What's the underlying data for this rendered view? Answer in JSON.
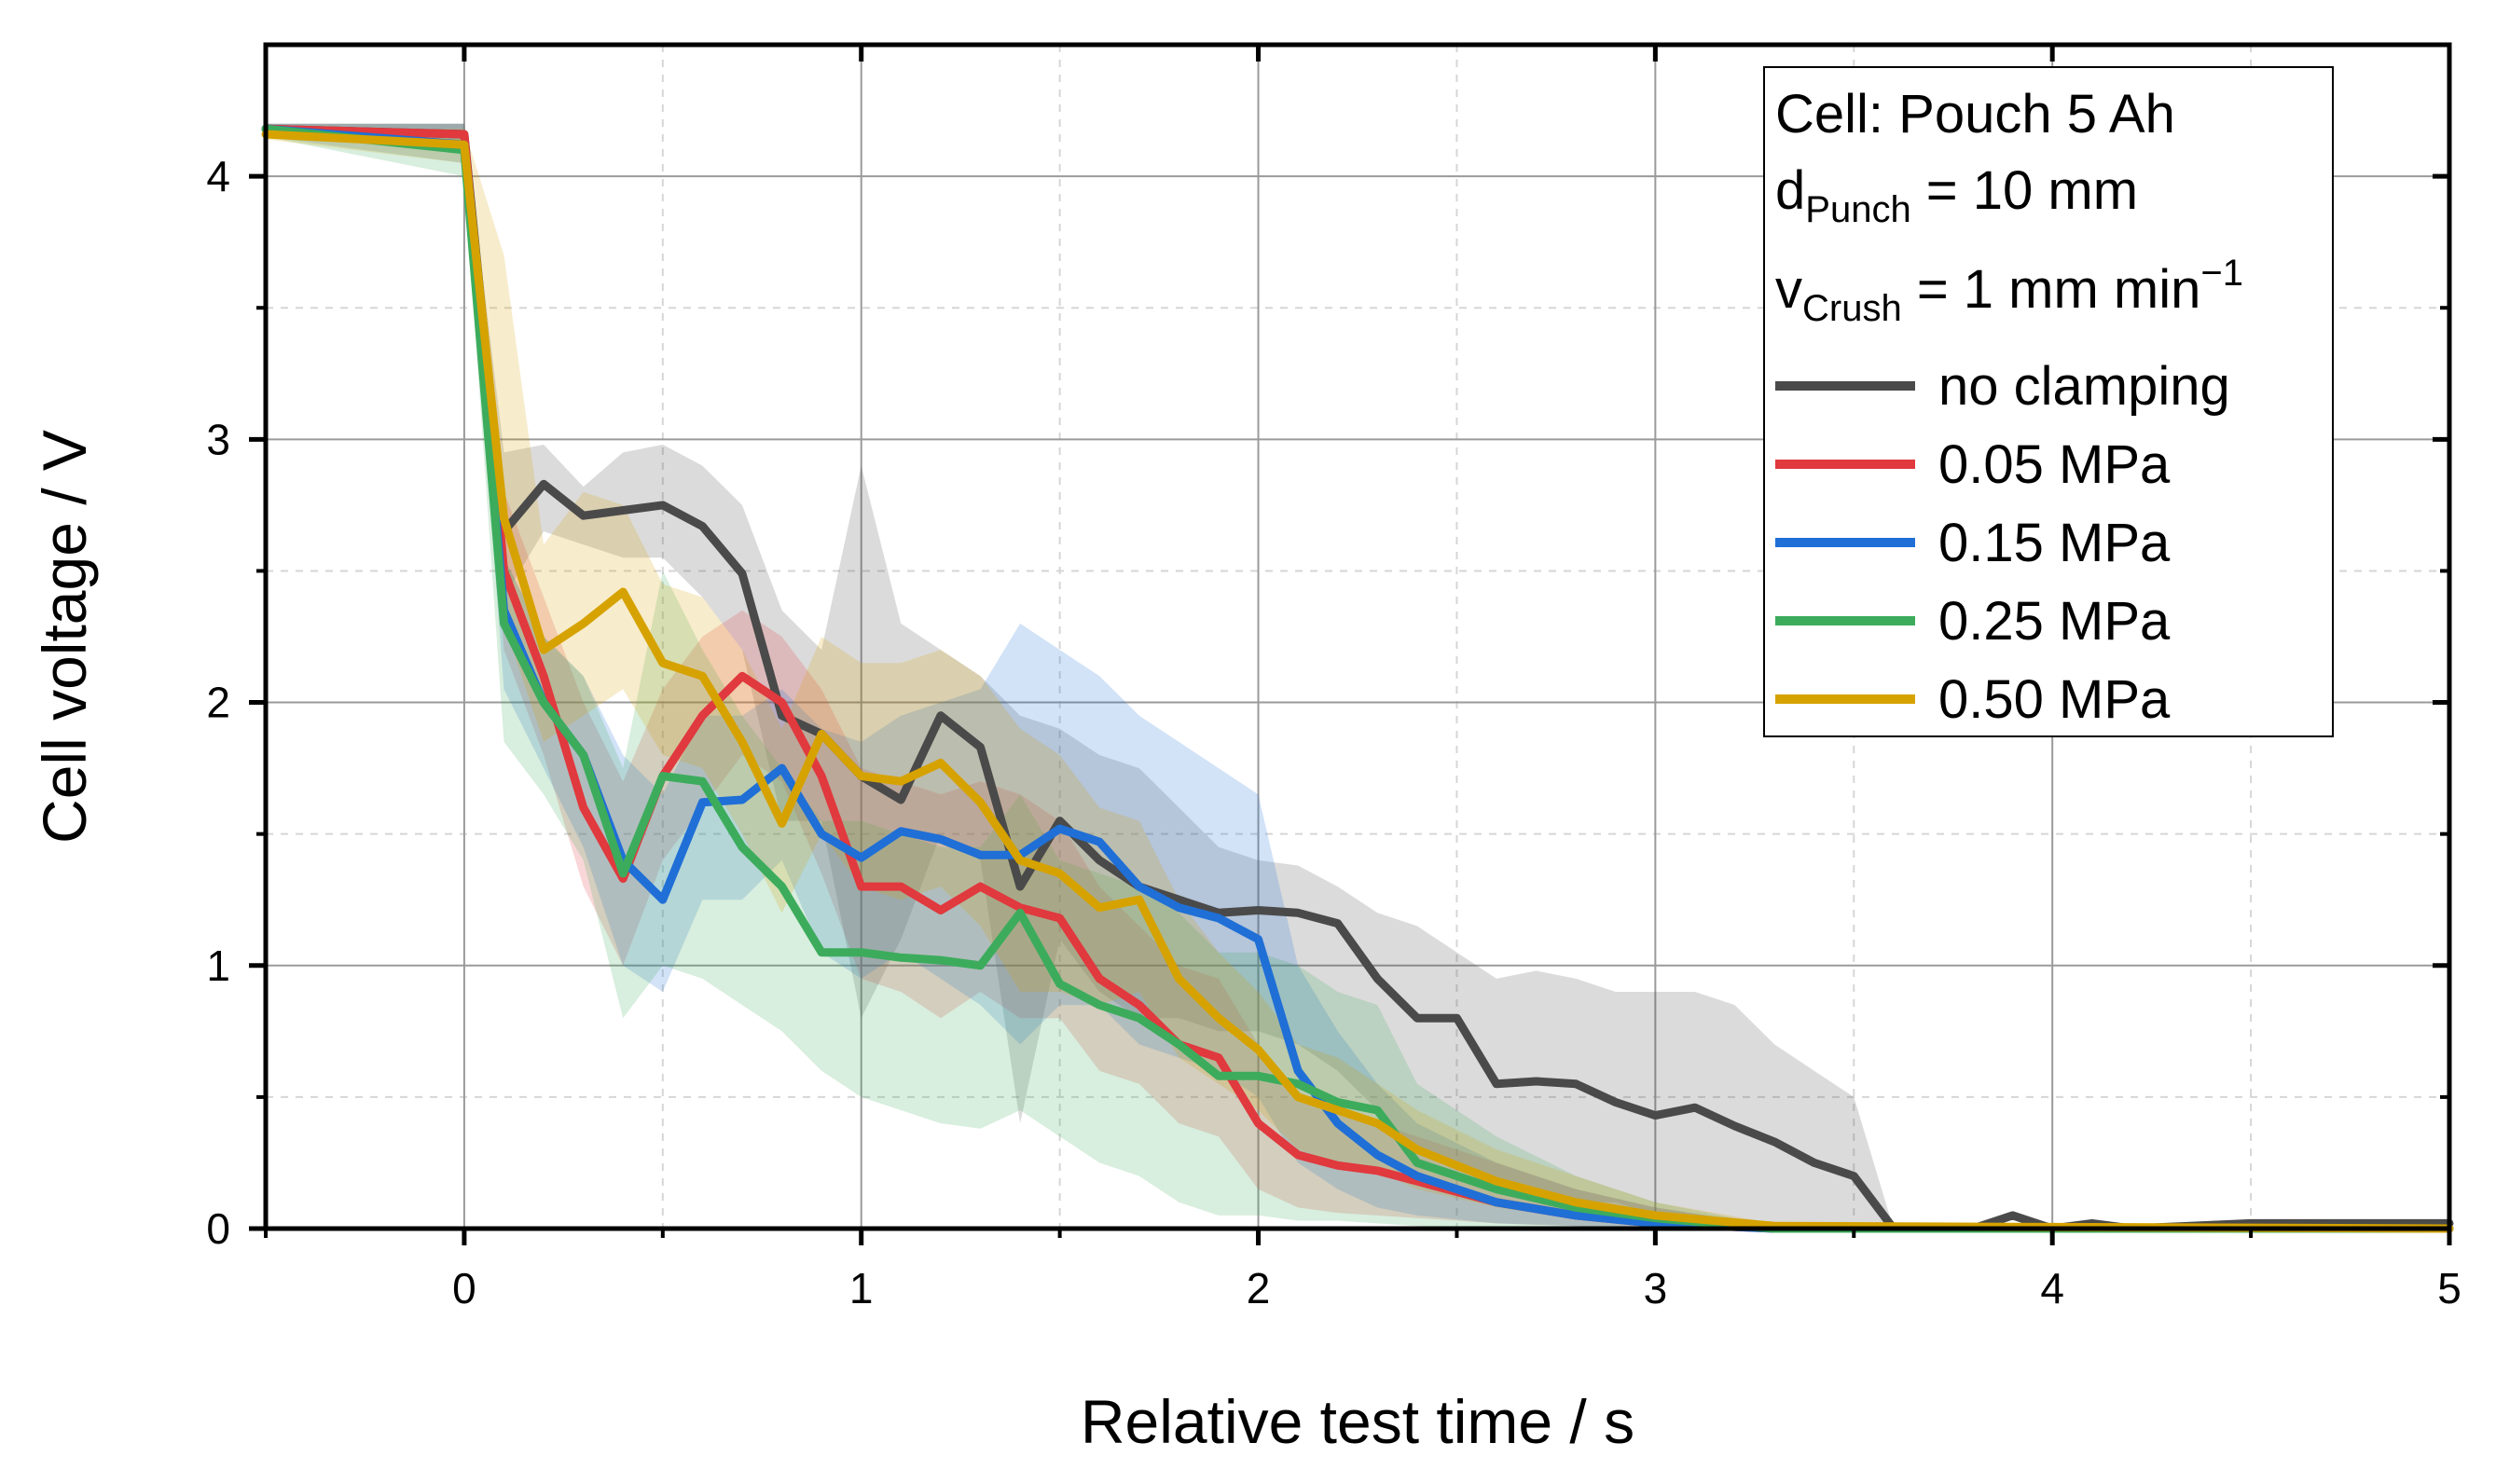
{
  "chart_data": {
    "type": "line",
    "xlabel": "Relative test time / s",
    "ylabel": "Cell voltage / V",
    "xlim": [
      -0.5,
      5
    ],
    "ylim": [
      0,
      4.5
    ],
    "xticks": [
      "0",
      "1",
      "2",
      "3",
      "4",
      "5"
    ],
    "yticks": [
      "0",
      "1",
      "2",
      "3",
      "4"
    ],
    "grid": true,
    "legend_position": "top-right",
    "annotations": {
      "cell": "Cell: Pouch 5 Ah",
      "punch_main": "d",
      "punch_sub": "Punch",
      "punch_rest": " = 10 mm",
      "crush_main": "v",
      "crush_sub": "Crush",
      "crush_rest": " = 1 mm min",
      "crush_sup": "−1"
    },
    "series": [
      {
        "name": "no clamping",
        "color": "#4a4a4a",
        "x": [
          -0.5,
          0.0,
          0.1,
          0.2,
          0.3,
          0.4,
          0.5,
          0.6,
          0.7,
          0.8,
          0.9,
          1.0,
          1.1,
          1.2,
          1.3,
          1.4,
          1.5,
          1.6,
          1.7,
          1.8,
          1.9,
          2.0,
          2.1,
          2.2,
          2.3,
          2.4,
          2.5,
          2.6,
          2.7,
          2.8,
          2.9,
          3.0,
          3.1,
          3.2,
          3.3,
          3.4,
          3.5,
          3.6,
          3.7,
          3.8,
          3.9,
          4.0,
          4.1,
          4.2,
          4.5,
          5.0
        ],
        "y": [
          4.18,
          4.16,
          2.65,
          2.83,
          2.71,
          2.73,
          2.75,
          2.67,
          2.49,
          1.95,
          1.88,
          1.72,
          1.63,
          1.95,
          1.83,
          1.3,
          1.55,
          1.4,
          1.3,
          1.25,
          1.2,
          1.21,
          1.2,
          1.16,
          0.95,
          0.8,
          0.8,
          0.55,
          0.56,
          0.55,
          0.48,
          0.43,
          0.46,
          0.39,
          0.33,
          0.25,
          0.2,
          0.0,
          0.0,
          0.0,
          0.05,
          0.0,
          0.02,
          0.0,
          0.02,
          0.02
        ],
        "band_upper": [
          4.2,
          4.2,
          2.95,
          2.98,
          2.82,
          2.95,
          2.98,
          2.9,
          2.75,
          2.35,
          2.2,
          2.9,
          2.3,
          2.2,
          2.1,
          1.95,
          1.9,
          1.8,
          1.75,
          1.6,
          1.45,
          1.4,
          1.38,
          1.3,
          1.2,
          1.15,
          1.05,
          0.95,
          0.98,
          0.95,
          0.9,
          0.9,
          0.9,
          0.85,
          0.7,
          0.6,
          0.5,
          0.0,
          0.0,
          0.0,
          0.05,
          0.0,
          0.02,
          0.0,
          0.02,
          0.02
        ],
        "band_lower": [
          4.15,
          4.1,
          2.4,
          2.65,
          2.6,
          2.55,
          2.55,
          2.4,
          2.2,
          1.55,
          1.55,
          0.8,
          1.1,
          1.5,
          1.4,
          0.4,
          1.1,
          0.9,
          0.8,
          0.8,
          0.75,
          0.75,
          0.7,
          0.6,
          0.45,
          0.3,
          0.25,
          0.15,
          0.15,
          0.1,
          0.1,
          0.05,
          0.05,
          0.02,
          0.01,
          0.01,
          0.0,
          0.0,
          0.0,
          0.0,
          0.05,
          0.0,
          0.02,
          0.0,
          0.02,
          0.02
        ]
      },
      {
        "name": "0.05 MPa",
        "color": "#e0393e",
        "x": [
          -0.5,
          0.0,
          0.1,
          0.2,
          0.3,
          0.4,
          0.5,
          0.6,
          0.7,
          0.8,
          0.9,
          1.0,
          1.1,
          1.2,
          1.3,
          1.4,
          1.5,
          1.6,
          1.7,
          1.8,
          1.9,
          2.0,
          2.1,
          2.2,
          2.3,
          2.4,
          2.6,
          2.8,
          3.0,
          3.3,
          5.0
        ],
        "y": [
          4.18,
          4.16,
          2.5,
          2.1,
          1.6,
          1.33,
          1.72,
          1.95,
          2.1,
          2.0,
          1.72,
          1.3,
          1.3,
          1.21,
          1.3,
          1.22,
          1.18,
          0.95,
          0.85,
          0.7,
          0.65,
          0.4,
          0.28,
          0.24,
          0.22,
          0.18,
          0.1,
          0.05,
          0.02,
          0.0,
          0.0
        ],
        "band_upper": [
          4.2,
          4.2,
          2.8,
          2.4,
          2.0,
          1.7,
          2.05,
          2.25,
          2.35,
          2.25,
          2.05,
          1.75,
          1.7,
          1.65,
          1.7,
          1.65,
          1.55,
          1.3,
          1.15,
          1.0,
          0.95,
          0.7,
          0.5,
          0.45,
          0.4,
          0.35,
          0.25,
          0.15,
          0.08,
          0.01,
          0.0
        ],
        "band_lower": [
          4.15,
          4.1,
          2.2,
          1.8,
          1.3,
          1.0,
          1.4,
          1.6,
          1.8,
          1.7,
          1.35,
          0.95,
          0.9,
          0.8,
          0.9,
          0.8,
          0.8,
          0.6,
          0.55,
          0.4,
          0.35,
          0.15,
          0.08,
          0.06,
          0.05,
          0.04,
          0.02,
          0.01,
          0.0,
          0.0,
          0.0
        ]
      },
      {
        "name": "0.15 MPa",
        "color": "#1f6fd6",
        "x": [
          -0.5,
          0.0,
          0.1,
          0.2,
          0.3,
          0.4,
          0.5,
          0.6,
          0.7,
          0.8,
          0.9,
          1.0,
          1.1,
          1.2,
          1.3,
          1.4,
          1.5,
          1.6,
          1.7,
          1.8,
          1.9,
          2.0,
          2.1,
          2.2,
          2.3,
          2.4,
          2.6,
          2.8,
          3.0,
          3.3,
          5.0
        ],
        "y": [
          4.18,
          4.12,
          2.35,
          2.0,
          1.8,
          1.4,
          1.25,
          1.62,
          1.63,
          1.75,
          1.5,
          1.41,
          1.51,
          1.48,
          1.42,
          1.42,
          1.52,
          1.47,
          1.3,
          1.22,
          1.18,
          1.1,
          0.6,
          0.4,
          0.28,
          0.2,
          0.1,
          0.05,
          0.02,
          0.0,
          0.0
        ],
        "band_upper": [
          4.2,
          4.2,
          2.55,
          2.25,
          2.1,
          1.8,
          1.65,
          1.95,
          1.95,
          2.05,
          1.9,
          1.85,
          1.95,
          2.0,
          2.05,
          2.3,
          2.2,
          2.1,
          1.95,
          1.85,
          1.75,
          1.65,
          1.0,
          0.75,
          0.55,
          0.4,
          0.25,
          0.15,
          0.08,
          0.01,
          0.0
        ],
        "band_lower": [
          4.15,
          4.05,
          2.05,
          1.75,
          1.45,
          1.0,
          0.9,
          1.25,
          1.25,
          1.4,
          1.05,
          0.95,
          1.05,
          0.95,
          0.85,
          0.7,
          0.85,
          0.85,
          0.7,
          0.65,
          0.6,
          0.5,
          0.25,
          0.15,
          0.08,
          0.05,
          0.02,
          0.01,
          0.0,
          0.0,
          0.0
        ]
      },
      {
        "name": "0.25 MPa",
        "color": "#3cac5c",
        "x": [
          -0.5,
          0.0,
          0.1,
          0.2,
          0.3,
          0.4,
          0.5,
          0.6,
          0.7,
          0.8,
          0.9,
          1.0,
          1.1,
          1.2,
          1.3,
          1.4,
          1.5,
          1.6,
          1.7,
          1.8,
          1.9,
          2.0,
          2.1,
          2.2,
          2.3,
          2.4,
          2.6,
          2.8,
          3.0,
          3.3,
          5.0
        ],
        "y": [
          4.18,
          4.1,
          2.3,
          2.0,
          1.8,
          1.35,
          1.72,
          1.7,
          1.45,
          1.3,
          1.05,
          1.05,
          1.03,
          1.02,
          1.0,
          1.2,
          0.93,
          0.85,
          0.8,
          0.7,
          0.58,
          0.58,
          0.55,
          0.48,
          0.45,
          0.25,
          0.15,
          0.08,
          0.04,
          0.0,
          0.0
        ],
        "band_upper": [
          4.2,
          4.2,
          2.55,
          2.25,
          2.1,
          1.75,
          2.5,
          2.2,
          1.95,
          1.75,
          1.55,
          1.55,
          1.5,
          1.45,
          1.45,
          1.65,
          1.4,
          1.35,
          1.3,
          1.2,
          1.05,
          1.05,
          1.0,
          0.9,
          0.85,
          0.55,
          0.35,
          0.2,
          0.1,
          0.01,
          0.0
        ],
        "band_lower": [
          4.15,
          4.0,
          1.85,
          1.65,
          1.4,
          0.8,
          1.0,
          0.95,
          0.85,
          0.75,
          0.6,
          0.5,
          0.45,
          0.4,
          0.38,
          0.45,
          0.35,
          0.25,
          0.2,
          0.1,
          0.05,
          0.05,
          0.03,
          0.03,
          0.02,
          0.01,
          0.0,
          0.0,
          0.0,
          0.0,
          0.0
        ]
      },
      {
        "name": "0.50 MPa",
        "color": "#d6a200",
        "x": [
          -0.5,
          0.0,
          0.1,
          0.2,
          0.3,
          0.4,
          0.5,
          0.6,
          0.7,
          0.8,
          0.9,
          1.0,
          1.1,
          1.2,
          1.3,
          1.4,
          1.5,
          1.6,
          1.7,
          1.8,
          1.9,
          2.0,
          2.1,
          2.2,
          2.3,
          2.4,
          2.6,
          2.8,
          3.0,
          3.3,
          5.0
        ],
        "y": [
          4.16,
          4.12,
          2.7,
          2.2,
          2.3,
          2.42,
          2.15,
          2.1,
          1.85,
          1.54,
          1.88,
          1.72,
          1.7,
          1.77,
          1.62,
          1.4,
          1.35,
          1.22,
          1.25,
          0.95,
          0.8,
          0.68,
          0.5,
          0.45,
          0.4,
          0.3,
          0.18,
          0.1,
          0.05,
          0.01,
          0.0
        ],
        "band_upper": [
          4.18,
          4.18,
          3.7,
          2.6,
          2.8,
          2.75,
          2.45,
          2.4,
          2.2,
          1.9,
          2.25,
          2.15,
          2.15,
          2.2,
          2.1,
          1.9,
          1.8,
          1.6,
          1.55,
          1.25,
          1.05,
          0.9,
          0.7,
          0.65,
          0.55,
          0.45,
          0.3,
          0.2,
          0.1,
          0.02,
          0.0
        ],
        "band_lower": [
          4.14,
          4.05,
          2.3,
          1.85,
          1.95,
          2.05,
          1.8,
          1.75,
          1.5,
          1.2,
          1.5,
          1.3,
          1.25,
          1.3,
          1.15,
          0.9,
          0.9,
          0.85,
          0.9,
          0.65,
          0.55,
          0.45,
          0.3,
          0.25,
          0.22,
          0.15,
          0.08,
          0.04,
          0.01,
          0.0,
          0.0
        ]
      }
    ]
  }
}
